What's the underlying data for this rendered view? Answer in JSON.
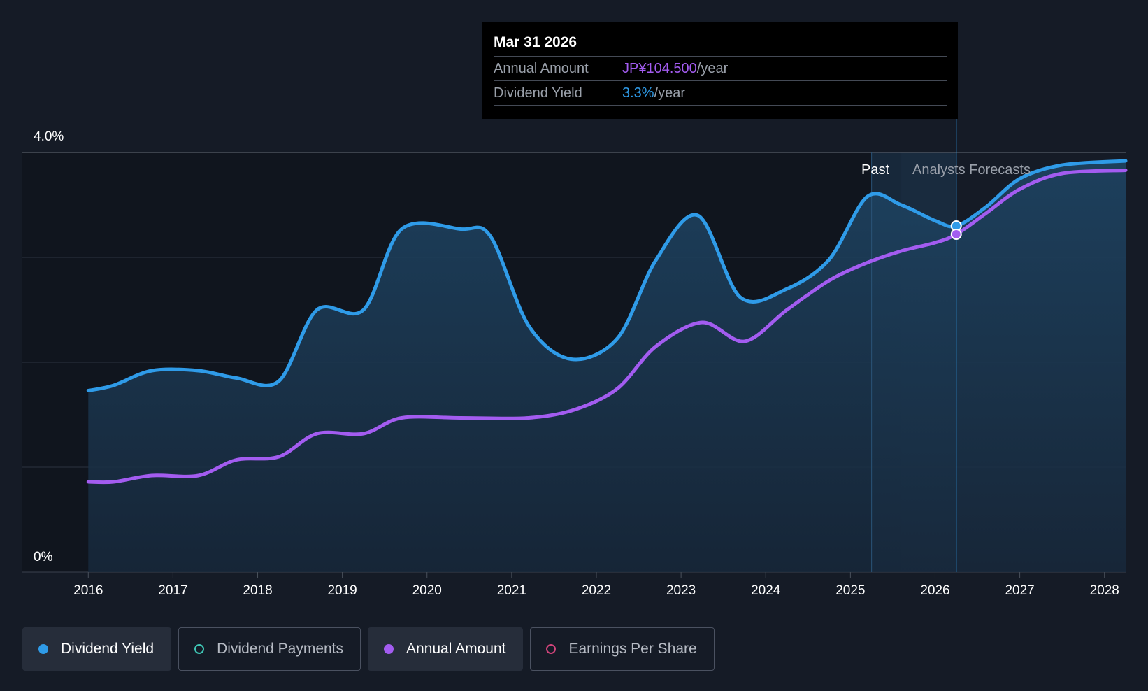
{
  "chart_data": {
    "type": "area",
    "y_axis": {
      "top_label": "4.0%",
      "bottom_label": "0%",
      "ylim": [
        0,
        4.0
      ]
    },
    "x_axis": {
      "ticks": [
        "2016",
        "2017",
        "2018",
        "2019",
        "2020",
        "2021",
        "2022",
        "2023",
        "2024",
        "2025",
        "2026",
        "2027",
        "2028"
      ],
      "xlim": [
        2015.75,
        2028.25
      ]
    },
    "regions": {
      "past_label": "Past",
      "forecast_label": "Analysts Forecasts",
      "past_end": 2025.6,
      "highlight_start": 2025.25,
      "cursor_x": 2026.25
    },
    "series": [
      {
        "name": "Dividend Yield",
        "color": "#2f9be8",
        "points": [
          [
            2016.0,
            1.73
          ],
          [
            2016.3,
            1.78
          ],
          [
            2016.75,
            1.92
          ],
          [
            2017.3,
            1.92
          ],
          [
            2017.75,
            1.85
          ],
          [
            2018.25,
            1.82
          ],
          [
            2018.7,
            2.5
          ],
          [
            2019.25,
            2.5
          ],
          [
            2019.7,
            3.27
          ],
          [
            2020.4,
            3.27
          ],
          [
            2020.75,
            3.2
          ],
          [
            2021.2,
            2.35
          ],
          [
            2021.7,
            2.03
          ],
          [
            2022.25,
            2.23
          ],
          [
            2022.7,
            2.97
          ],
          [
            2023.2,
            3.4
          ],
          [
            2023.7,
            2.62
          ],
          [
            2024.25,
            2.7
          ],
          [
            2024.75,
            2.98
          ],
          [
            2025.2,
            3.58
          ],
          [
            2025.6,
            3.5
          ],
          [
            2026.0,
            3.35
          ],
          [
            2026.25,
            3.3
          ],
          [
            2026.6,
            3.48
          ],
          [
            2027.0,
            3.75
          ],
          [
            2027.5,
            3.88
          ],
          [
            2028.25,
            3.92
          ]
        ]
      },
      {
        "name": "Annual Amount",
        "color": "#a35cf0",
        "points": [
          [
            2016.0,
            0.86
          ],
          [
            2016.3,
            0.86
          ],
          [
            2016.75,
            0.92
          ],
          [
            2017.3,
            0.92
          ],
          [
            2017.75,
            1.07
          ],
          [
            2018.25,
            1.1
          ],
          [
            2018.7,
            1.32
          ],
          [
            2019.25,
            1.32
          ],
          [
            2019.7,
            1.47
          ],
          [
            2020.4,
            1.47
          ],
          [
            2021.2,
            1.47
          ],
          [
            2021.75,
            1.55
          ],
          [
            2022.25,
            1.75
          ],
          [
            2022.7,
            2.15
          ],
          [
            2023.25,
            2.38
          ],
          [
            2023.75,
            2.2
          ],
          [
            2024.25,
            2.5
          ],
          [
            2024.75,
            2.78
          ],
          [
            2025.2,
            2.95
          ],
          [
            2025.6,
            3.06
          ],
          [
            2026.0,
            3.14
          ],
          [
            2026.25,
            3.22
          ],
          [
            2026.6,
            3.42
          ],
          [
            2027.0,
            3.65
          ],
          [
            2027.5,
            3.8
          ],
          [
            2028.25,
            3.83
          ]
        ]
      }
    ]
  },
  "tooltip": {
    "date": "Mar 31 2026",
    "rows": [
      {
        "key": "Annual Amount",
        "value": "JP¥104.500",
        "unit": "/year"
      },
      {
        "key": "Dividend Yield",
        "value": "3.3%",
        "unit": "/year"
      }
    ]
  },
  "legend": {
    "items": [
      {
        "label": "Dividend Yield",
        "dot_color": "#2f9be8",
        "filled": true
      },
      {
        "label": "Dividend Payments",
        "dot_color": "#3fc6b5",
        "filled": false
      },
      {
        "label": "Annual Amount",
        "dot_color": "#a35cf0",
        "filled": true
      },
      {
        "label": "Earnings Per Share",
        "dot_color": "#d0447a",
        "filled": false
      }
    ]
  },
  "colors": {
    "background": "#151b26",
    "grid": "#2c3340",
    "area_fill": "#1b3650"
  }
}
